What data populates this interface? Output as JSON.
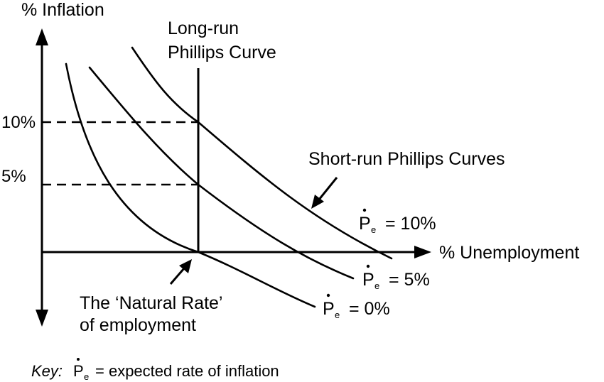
{
  "axes": {
    "y_label": "% Inflation",
    "x_label": "% Unemployment",
    "y_ticks": [
      "10%",
      "5%"
    ]
  },
  "long_run": {
    "line1": "Long-run",
    "line2": "Phillips Curve"
  },
  "short_run_title": "Short-run Phillips Curves",
  "curves": [
    {
      "P": "P",
      "e": "e",
      "value": "= 10%"
    },
    {
      "P": "P",
      "e": "e",
      "value": "= 5%"
    },
    {
      "P": "P",
      "e": "e",
      "value": "= 0%"
    }
  ],
  "natural_rate": {
    "line1": "The ‘Natural Rate’",
    "line2": "of employment"
  },
  "key": {
    "label": "Key:",
    "P": "P",
    "e": "e",
    "text": "= expected rate of inflation"
  },
  "colors": {
    "ink": "#000000",
    "background": "#ffffff"
  }
}
